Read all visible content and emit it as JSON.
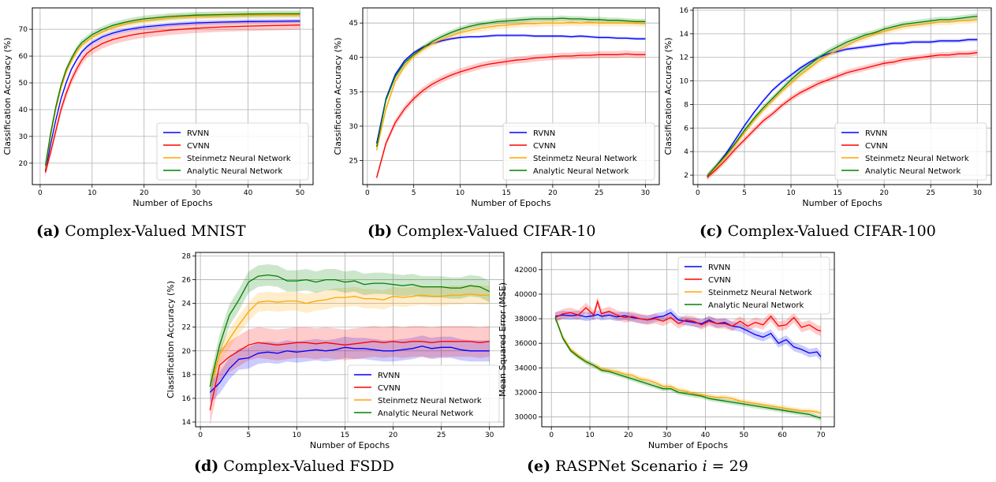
{
  "series_styles": [
    {
      "name": "RVNN",
      "color": "#0000ff"
    },
    {
      "name": "CVNN",
      "color": "#ff0000"
    },
    {
      "name": "Steinmetz Neural Network",
      "color": "#ffa500"
    },
    {
      "name": "Analytic Neural Network",
      "color": "#008000"
    }
  ],
  "chart_data": [
    {
      "id": "a",
      "type": "line",
      "caption_label": "(a)",
      "caption_text": "Complex-Valued MNIST",
      "xlabel": "Number of Epochs",
      "ylabel": "Classification Accuracy (%)",
      "xlim": [
        -1.5,
        52.5
      ],
      "ylim": [
        12,
        78
      ],
      "xticks": [
        0,
        10,
        20,
        30,
        40,
        50
      ],
      "yticks": [
        20,
        30,
        40,
        50,
        60,
        70
      ],
      "legend": "lower-right",
      "grid": true,
      "x": [
        1,
        2,
        3,
        4,
        5,
        6,
        7,
        8,
        9,
        10,
        12,
        14,
        16,
        18,
        20,
        25,
        30,
        35,
        40,
        45,
        50
      ],
      "series": [
        {
          "name": "RVNN",
          "values": [
            17,
            27,
            36,
            44,
            50,
            55,
            58.5,
            61.5,
            63.5,
            65,
            67.2,
            68.6,
            69.6,
            70.3,
            70.9,
            71.8,
            72.4,
            72.7,
            72.9,
            73.0,
            73.1
          ],
          "spread": 0.8
        },
        {
          "name": "CVNN",
          "values": [
            16.5,
            24,
            32,
            40,
            46,
            51,
            55,
            58.5,
            61,
            62.5,
            64.7,
            66.2,
            67.2,
            68.0,
            68.6,
            69.7,
            70.4,
            70.9,
            71.2,
            71.4,
            71.6
          ],
          "spread": 1.8
        },
        {
          "name": "Steinmetz Neural Network",
          "values": [
            18,
            30,
            40,
            48,
            54,
            58,
            61.5,
            64,
            65.5,
            67,
            69,
            70.6,
            71.8,
            72.6,
            73.2,
            74.2,
            74.8,
            75.0,
            75.2,
            75.3,
            75.4
          ],
          "spread": 1.2
        },
        {
          "name": "Analytic Neural Network",
          "values": [
            19,
            31,
            41,
            49,
            55,
            59,
            62.5,
            65,
            66.5,
            68,
            70,
            71.5,
            72.5,
            73.3,
            73.9,
            74.8,
            75.3,
            75.5,
            75.7,
            75.8,
            75.8
          ],
          "spread": 1.2
        }
      ]
    },
    {
      "id": "b",
      "type": "line",
      "caption_label": "(b)",
      "caption_text": "Complex-Valued CIFAR-10",
      "xlabel": "Number of Epochs",
      "ylabel": "Classification Accuracy (%)",
      "xlim": [
        -0.5,
        31.5
      ],
      "ylim": [
        21.5,
        47.2
      ],
      "xticks": [
        0,
        5,
        10,
        15,
        20,
        25,
        30
      ],
      "yticks": [
        25,
        30,
        35,
        40,
        45
      ],
      "legend": "lower-right",
      "grid": true,
      "x": [
        1,
        2,
        3,
        4,
        5,
        6,
        7,
        8,
        9,
        10,
        11,
        12,
        13,
        14,
        15,
        16,
        17,
        18,
        19,
        20,
        21,
        22,
        23,
        24,
        25,
        26,
        27,
        28,
        29,
        30
      ],
      "series": [
        {
          "name": "RVNN",
          "values": [
            27.5,
            34,
            37.5,
            39.5,
            40.7,
            41.5,
            42,
            42.4,
            42.7,
            42.9,
            43.0,
            43.0,
            43.1,
            43.2,
            43.2,
            43.2,
            43.2,
            43.1,
            43.1,
            43.1,
            43.1,
            43.0,
            43.1,
            43.0,
            42.9,
            42.9,
            42.8,
            42.8,
            42.7,
            42.7
          ],
          "spread": 0.2
        },
        {
          "name": "CVNN",
          "values": [
            22.5,
            27.5,
            30.5,
            32.5,
            34,
            35.2,
            36.1,
            36.8,
            37.4,
            37.9,
            38.3,
            38.7,
            39.0,
            39.2,
            39.4,
            39.6,
            39.7,
            39.9,
            40.0,
            40.1,
            40.2,
            40.2,
            40.3,
            40.3,
            40.4,
            40.4,
            40.4,
            40.5,
            40.4,
            40.4
          ],
          "spread": 0.5
        },
        {
          "name": "Steinmetz Neural Network",
          "values": [
            26.5,
            32.5,
            36.5,
            38.7,
            40.2,
            41.2,
            42,
            42.6,
            43.1,
            43.6,
            43.9,
            44.2,
            44.4,
            44.6,
            44.7,
            44.8,
            44.9,
            44.9,
            45.0,
            45.0,
            45.0,
            45.1,
            45.0,
            45.1,
            45.0,
            45.0,
            45.0,
            45.0,
            45.0,
            44.9
          ],
          "spread": 0.5
        },
        {
          "name": "Analytic Neural Network",
          "values": [
            27,
            33.8,
            37.2,
            39.2,
            40.4,
            41.4,
            42.3,
            43,
            43.6,
            44.1,
            44.5,
            44.8,
            45.0,
            45.2,
            45.3,
            45.4,
            45.5,
            45.6,
            45.6,
            45.6,
            45.7,
            45.6,
            45.6,
            45.5,
            45.5,
            45.4,
            45.4,
            45.3,
            45.2,
            45.2
          ],
          "spread": 0.4
        }
      ]
    },
    {
      "id": "c",
      "type": "line",
      "caption_label": "(c)",
      "caption_text": "Complex-Valued CIFAR-100",
      "xlabel": "Number of Epochs",
      "ylabel": "Classification Accuracy (%)",
      "xlim": [
        -0.5,
        31.5
      ],
      "ylim": [
        1.2,
        16.2
      ],
      "xticks": [
        0,
        5,
        10,
        15,
        20,
        25,
        30
      ],
      "yticks": [
        2,
        4,
        6,
        8,
        10,
        12,
        14,
        16
      ],
      "legend": "lower-right",
      "grid": true,
      "x": [
        1,
        2,
        3,
        4,
        5,
        6,
        7,
        8,
        9,
        10,
        11,
        12,
        13,
        14,
        15,
        16,
        17,
        18,
        19,
        20,
        21,
        22,
        23,
        24,
        25,
        26,
        27,
        28,
        29,
        30
      ],
      "series": [
        {
          "name": "RVNN",
          "values": [
            1.9,
            2.8,
            3.8,
            5.0,
            6.2,
            7.3,
            8.3,
            9.2,
            9.9,
            10.5,
            11.1,
            11.6,
            12.0,
            12.3,
            12.5,
            12.7,
            12.8,
            12.9,
            13.0,
            13.1,
            13.2,
            13.2,
            13.3,
            13.3,
            13.3,
            13.4,
            13.4,
            13.4,
            13.5,
            13.5
          ],
          "spread": 0.15
        },
        {
          "name": "CVNN",
          "values": [
            1.8,
            2.5,
            3.3,
            4.2,
            5.0,
            5.8,
            6.6,
            7.2,
            7.9,
            8.5,
            9.0,
            9.4,
            9.8,
            10.1,
            10.4,
            10.7,
            10.9,
            11.1,
            11.3,
            11.5,
            11.6,
            11.8,
            11.9,
            12.0,
            12.1,
            12.2,
            12.2,
            12.3,
            12.3,
            12.4
          ],
          "spread": 0.25
        },
        {
          "name": "Steinmetz Neural Network",
          "values": [
            1.9,
            2.7,
            3.6,
            4.6,
            5.6,
            6.6,
            7.5,
            8.3,
            9.1,
            9.8,
            10.5,
            11.1,
            11.7,
            12.2,
            12.6,
            13.0,
            13.4,
            13.7,
            14.0,
            14.2,
            14.4,
            14.6,
            14.7,
            14.8,
            14.9,
            15.0,
            15.0,
            15.1,
            15.1,
            15.2
          ],
          "spread": 0.25
        },
        {
          "name": "Analytic Neural Network",
          "values": [
            1.9,
            2.8,
            3.7,
            4.7,
            5.8,
            6.8,
            7.7,
            8.5,
            9.3,
            10.1,
            10.8,
            11.4,
            12.0,
            12.5,
            12.9,
            13.3,
            13.6,
            13.9,
            14.1,
            14.4,
            14.6,
            14.8,
            14.9,
            15.0,
            15.1,
            15.2,
            15.2,
            15.3,
            15.4,
            15.5
          ],
          "spread": 0.25
        }
      ]
    },
    {
      "id": "d",
      "type": "line",
      "caption_label": "(d)",
      "caption_text": "Complex-Valued FSDD",
      "xlabel": "Number of Epochs",
      "ylabel": "Classification Accuracy (%)",
      "xlim": [
        -0.5,
        31.5
      ],
      "ylim": [
        13.6,
        28.3
      ],
      "xticks": [
        0,
        5,
        10,
        15,
        20,
        25,
        30
      ],
      "yticks": [
        14,
        16,
        18,
        20,
        22,
        24,
        26,
        28
      ],
      "legend": "lower-right",
      "grid": true,
      "x": [
        1,
        2,
        3,
        4,
        5,
        6,
        7,
        8,
        9,
        10,
        11,
        12,
        13,
        14,
        15,
        16,
        17,
        18,
        19,
        20,
        21,
        22,
        23,
        24,
        25,
        26,
        27,
        28,
        29,
        30
      ],
      "series": [
        {
          "name": "RVNN",
          "values": [
            16.5,
            17.3,
            18.5,
            19.3,
            19.4,
            19.8,
            19.9,
            19.8,
            20.0,
            19.9,
            20.0,
            20.1,
            20.0,
            20.1,
            20.3,
            20.2,
            20.2,
            20.1,
            20.0,
            20.0,
            20.1,
            20.2,
            20.4,
            20.2,
            20.3,
            20.3,
            20.1,
            20.0,
            20.0,
            20.0
          ],
          "spread": 0.9
        },
        {
          "name": "CVNN",
          "values": [
            15.0,
            18.8,
            19.5,
            20.0,
            20.5,
            20.7,
            20.6,
            20.5,
            20.6,
            20.7,
            20.7,
            20.6,
            20.7,
            20.6,
            20.5,
            20.6,
            20.7,
            20.8,
            20.7,
            20.8,
            20.7,
            20.8,
            20.8,
            20.7,
            20.8,
            20.8,
            20.8,
            20.8,
            20.7,
            20.8
          ],
          "spread": 1.3
        },
        {
          "name": "Steinmetz Neural Network",
          "values": [
            17.0,
            19.7,
            21.0,
            22.2,
            23.3,
            24.1,
            24.2,
            24.1,
            24.2,
            24.2,
            24.0,
            24.2,
            24.3,
            24.5,
            24.5,
            24.6,
            24.4,
            24.4,
            24.3,
            24.6,
            24.5,
            24.6,
            24.7,
            24.6,
            24.6,
            24.7,
            24.7,
            24.8,
            24.7,
            24.7
          ],
          "spread": 0.8
        },
        {
          "name": "Analytic Neural Network",
          "values": [
            17.0,
            20.5,
            23.0,
            24.3,
            25.8,
            26.3,
            26.4,
            26.3,
            25.9,
            25.9,
            26.0,
            25.8,
            26.0,
            26.0,
            25.8,
            25.9,
            25.6,
            25.7,
            25.7,
            25.6,
            25.5,
            25.6,
            25.4,
            25.4,
            25.4,
            25.3,
            25.3,
            25.5,
            25.4,
            25.0
          ],
          "spread": 0.9
        }
      ]
    },
    {
      "id": "e",
      "type": "line",
      "caption_label": "(e)",
      "caption_text": "RASPNet Scenario",
      "caption_math_var": "i",
      "caption_math_rest": " = 29",
      "xlabel": "Number of Epochs",
      "ylabel": "Mean Squared Error (MSE)",
      "xlim": [
        -2.5,
        73.5
      ],
      "ylim": [
        29200,
        43400
      ],
      "xticks": [
        0,
        10,
        20,
        30,
        40,
        50,
        60,
        70
      ],
      "yticks": [
        30000,
        32000,
        34000,
        36000,
        38000,
        40000,
        42000
      ],
      "legend": "upper-right",
      "grid": true,
      "x": [
        1,
        3,
        5,
        7,
        9,
        11,
        12,
        13,
        15,
        17,
        19,
        21,
        23,
        25,
        27,
        29,
        31,
        33,
        35,
        37,
        39,
        41,
        43,
        45,
        47,
        49,
        51,
        53,
        55,
        57,
        59,
        61,
        63,
        65,
        67,
        69,
        70
      ],
      "series": [
        {
          "name": "RVNN",
          "values": [
            38200,
            38300,
            38250,
            38300,
            38150,
            38250,
            38350,
            38200,
            38300,
            38150,
            38250,
            38100,
            38000,
            37900,
            38100,
            38200,
            38500,
            37900,
            37800,
            37700,
            37600,
            37900,
            37600,
            37700,
            37400,
            37300,
            37000,
            36700,
            36500,
            36800,
            36000,
            36300,
            35700,
            35500,
            35200,
            35300,
            34900
          ],
          "spread": 350
        },
        {
          "name": "CVNN",
          "values": [
            38100,
            38400,
            38500,
            38300,
            38900,
            38300,
            39400,
            38400,
            38600,
            38300,
            38100,
            38200,
            38000,
            37900,
            38000,
            37800,
            38100,
            37600,
            37900,
            37800,
            37500,
            37800,
            37600,
            37600,
            37400,
            37800,
            37400,
            37700,
            37500,
            38200,
            37400,
            37500,
            38100,
            37300,
            37500,
            37100,
            37000
          ],
          "spread": 400
        },
        {
          "name": "Steinmetz Neural Network",
          "values": [
            38100,
            36500,
            35500,
            35000,
            34500,
            34200,
            34100,
            33900,
            33800,
            33700,
            33500,
            33400,
            33100,
            33000,
            32800,
            32500,
            32500,
            32200,
            32100,
            31900,
            31800,
            31700,
            31600,
            31600,
            31500,
            31300,
            31200,
            31100,
            31000,
            30900,
            30800,
            30700,
            30600,
            30500,
            30500,
            30400,
            30300
          ],
          "spread": 200
        },
        {
          "name": "Analytic Neural Network",
          "values": [
            38100,
            36400,
            35400,
            34900,
            34500,
            34200,
            34000,
            33800,
            33700,
            33500,
            33300,
            33100,
            32900,
            32700,
            32500,
            32300,
            32300,
            32000,
            31900,
            31800,
            31700,
            31500,
            31400,
            31300,
            31200,
            31100,
            31000,
            30900,
            30800,
            30700,
            30600,
            30500,
            30400,
            30300,
            30200,
            30000,
            29900
          ],
          "spread": 200
        }
      ]
    }
  ]
}
